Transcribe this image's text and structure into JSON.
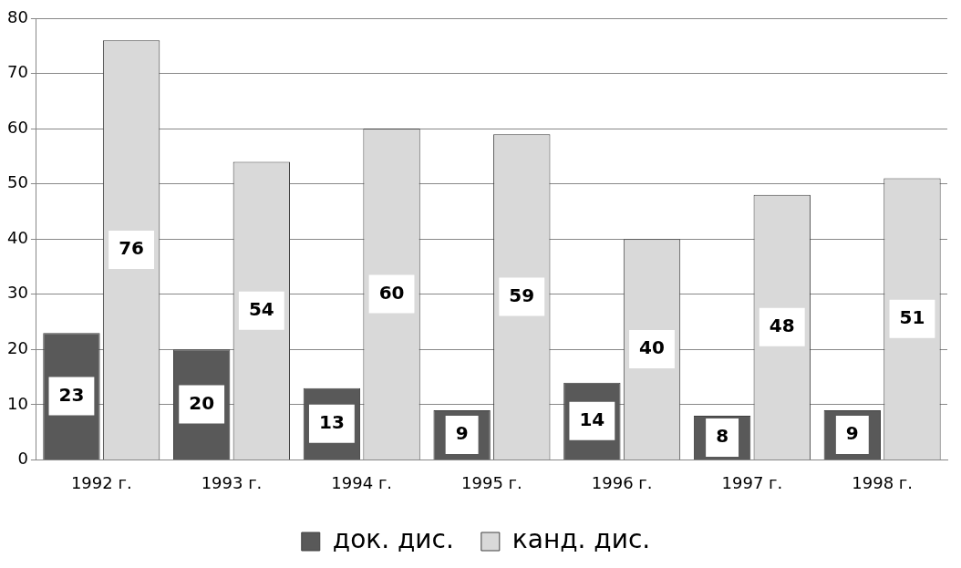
{
  "chart_data": {
    "type": "bar",
    "categories": [
      "1992 г.",
      "1993 г.",
      "1994 г.",
      "1995 г.",
      "1996 г.",
      "1997 г.",
      "1998 г."
    ],
    "series": [
      {
        "name": "док. дис.",
        "color": "#595959",
        "values": [
          23,
          20,
          13,
          9,
          14,
          8,
          9
        ]
      },
      {
        "name": "канд. дис.",
        "color": "#d9d9d9",
        "values": [
          76,
          54,
          60,
          59,
          40,
          48,
          51
        ]
      }
    ],
    "ylim": [
      0,
      80
    ],
    "yticks": [
      0,
      10,
      20,
      30,
      40,
      50,
      60,
      70,
      80
    ],
    "grid": "y",
    "legend": "bottom",
    "data_labels": true
  }
}
